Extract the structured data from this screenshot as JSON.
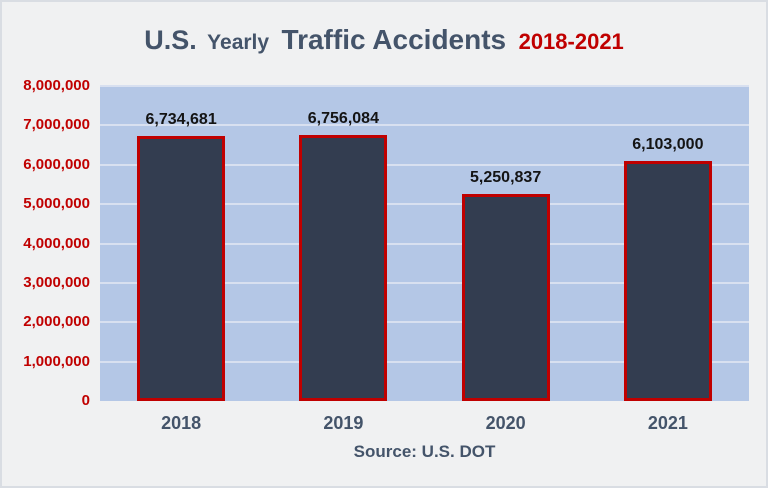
{
  "title": {
    "part_us": "U.S.",
    "part_yearly": "Yearly",
    "part_main": "Traffic Accidents",
    "part_years": "2018-2021"
  },
  "source_text": "Source: U.S. DOT",
  "colors": {
    "page_bg": "#F0F1F2",
    "plot_bg": "#B4C7E6",
    "gridline": "#D8E0F0",
    "bar_fill": "#333D50",
    "bar_border": "#C00000",
    "axis_red": "#C00000",
    "heading_blue": "#44546A",
    "data_label": "#141414"
  },
  "chart_data": {
    "type": "bar",
    "title": "U.S. Yearly Traffic Accidents 2018-2021",
    "categories": [
      "2018",
      "2019",
      "2020",
      "2021"
    ],
    "values": [
      6734681,
      6756084,
      5250837,
      6103000
    ],
    "data_labels": [
      "6,734,681",
      "6,756,084",
      "5,250,837",
      "6,103,000"
    ],
    "xlabel": "",
    "ylabel": "",
    "ylim": [
      0,
      8000000
    ],
    "yticks": [
      {
        "value": 0,
        "label": "0"
      },
      {
        "value": 1000000,
        "label": "1,000,000"
      },
      {
        "value": 2000000,
        "label": "2,000,000"
      },
      {
        "value": 3000000,
        "label": "3,000,000"
      },
      {
        "value": 4000000,
        "label": "4,000,000"
      },
      {
        "value": 5000000,
        "label": "5,000,000"
      },
      {
        "value": 6000000,
        "label": "6,000,000"
      },
      {
        "value": 7000000,
        "label": "7,000,000"
      },
      {
        "value": 8000000,
        "label": "8,000,000"
      }
    ],
    "grid": true,
    "legend": false,
    "source": "Source: U.S. DOT"
  }
}
